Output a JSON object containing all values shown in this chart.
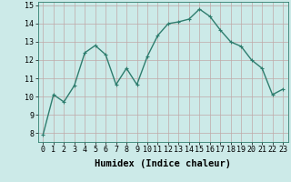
{
  "x": [
    0,
    1,
    2,
    3,
    4,
    5,
    6,
    7,
    8,
    9,
    10,
    11,
    12,
    13,
    14,
    15,
    16,
    17,
    18,
    19,
    20,
    21,
    22,
    23
  ],
  "y": [
    7.9,
    10.1,
    9.7,
    10.6,
    12.4,
    12.8,
    12.3,
    10.65,
    11.55,
    10.65,
    12.2,
    13.35,
    14.0,
    14.1,
    14.25,
    14.8,
    14.4,
    13.65,
    13.0,
    12.75,
    12.0,
    11.55,
    10.1,
    10.4
  ],
  "line_color": "#2e7d6e",
  "marker": "+",
  "marker_size": 3,
  "bg_color": "#cceae8",
  "grid_color": "#c0a8a8",
  "xlabel": "Humidex (Indice chaleur)",
  "ylim": [
    7.5,
    15.2
  ],
  "xlim": [
    -0.5,
    23.5
  ],
  "yticks": [
    8,
    9,
    10,
    11,
    12,
    13,
    14,
    15
  ],
  "xticks": [
    0,
    1,
    2,
    3,
    4,
    5,
    6,
    7,
    8,
    9,
    10,
    11,
    12,
    13,
    14,
    15,
    16,
    17,
    18,
    19,
    20,
    21,
    22,
    23
  ],
  "xlabel_fontsize": 7.5,
  "tick_fontsize": 6,
  "line_width": 1.0,
  "marker_edge_width": 0.8
}
